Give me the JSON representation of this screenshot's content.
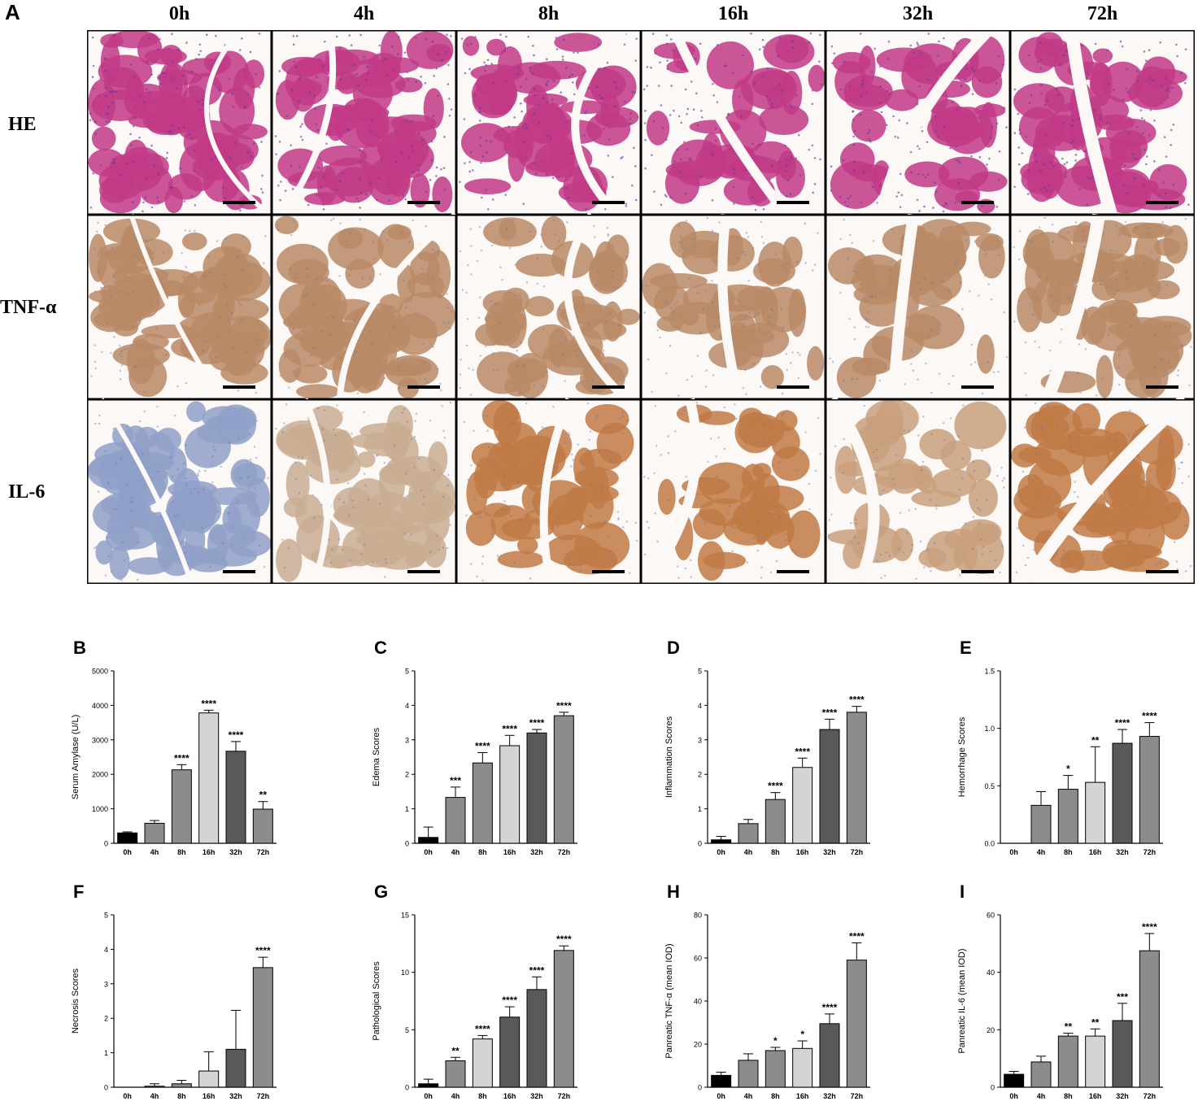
{
  "panel_A": {
    "letter": "A",
    "columns": [
      "0h",
      "4h",
      "8h",
      "16h",
      "32h",
      "72h"
    ],
    "rows": [
      "HE",
      "TNF-α",
      "IL-6"
    ]
  },
  "colors": {
    "he_tissue": "#c23a86",
    "he_nuclei": "#5a3a9e",
    "tnf_tissue": "#b98a66",
    "il6_tissue_0h": "#8fa0c8",
    "il6_tissue_late": "#c07a45",
    "bar_black": "#000000",
    "bar_gray": "#8c8c8c",
    "bar_lightgray": "#d4d4d4",
    "bar_darkgray": "#595959"
  },
  "chart_data": [
    {
      "id": "B",
      "letter": "B",
      "type": "bar",
      "categories": [
        "0h",
        "4h",
        "8h",
        "16h",
        "32h",
        "72h"
      ],
      "values": [
        300,
        580,
        2130,
        3780,
        2670,
        990
      ],
      "errors": [
        30,
        80,
        150,
        80,
        280,
        220
      ],
      "significance": [
        "",
        "",
        "****",
        "****",
        "****",
        "**"
      ],
      "bar_colors": [
        "#000000",
        "#8c8c8c",
        "#8c8c8c",
        "#d4d4d4",
        "#595959",
        "#8c8c8c"
      ],
      "ylabel": "Serum Amylase (U/L)",
      "ylim": [
        0,
        5000
      ],
      "yticks": [
        0,
        1000,
        2000,
        3000,
        4000,
        5000
      ]
    },
    {
      "id": "C",
      "letter": "C",
      "type": "bar",
      "categories": [
        "0h",
        "4h",
        "8h",
        "16h",
        "32h",
        "72h"
      ],
      "values": [
        0.17,
        1.33,
        2.33,
        2.83,
        3.2,
        3.7
      ],
      "errors": [
        0.3,
        0.3,
        0.3,
        0.3,
        0.1,
        0.1
      ],
      "significance": [
        "",
        "***",
        "****",
        "****",
        "****",
        "****"
      ],
      "bar_colors": [
        "#000000",
        "#8c8c8c",
        "#8c8c8c",
        "#d4d4d4",
        "#595959",
        "#8c8c8c"
      ],
      "ylabel": "Edema Scores",
      "ylim": [
        0,
        5
      ],
      "yticks": [
        0,
        1,
        2,
        3,
        4,
        5
      ]
    },
    {
      "id": "D",
      "letter": "D",
      "type": "bar",
      "categories": [
        "0h",
        "4h",
        "8h",
        "16h",
        "32h",
        "72h"
      ],
      "values": [
        0.1,
        0.57,
        1.27,
        2.2,
        3.3,
        3.8
      ],
      "errors": [
        0.1,
        0.12,
        0.2,
        0.27,
        0.3,
        0.17
      ],
      "significance": [
        "",
        "",
        "****",
        "****",
        "****",
        "****"
      ],
      "bar_colors": [
        "#000000",
        "#8c8c8c",
        "#8c8c8c",
        "#d4d4d4",
        "#595959",
        "#8c8c8c"
      ],
      "ylabel": "Inflammation Scores",
      "ylim": [
        0,
        5
      ],
      "yticks": [
        0,
        1,
        2,
        3,
        4,
        5
      ]
    },
    {
      "id": "E",
      "letter": "E",
      "type": "bar",
      "categories": [
        "0h",
        "4h",
        "8h",
        "16h",
        "32h",
        "72h"
      ],
      "values": [
        0,
        0.33,
        0.47,
        0.53,
        0.87,
        0.93
      ],
      "errors": [
        0,
        0.12,
        0.12,
        0.31,
        0.12,
        0.12
      ],
      "significance": [
        "",
        "",
        "*",
        "**",
        "****",
        "****"
      ],
      "bar_colors": [
        "#000000",
        "#8c8c8c",
        "#8c8c8c",
        "#d4d4d4",
        "#595959",
        "#8c8c8c"
      ],
      "ylabel": "Hemorrhage Scores",
      "ylim": [
        0,
        1.5
      ],
      "yticks": [
        0.0,
        0.5,
        1.0,
        1.5
      ],
      "ytick_labels": [
        "0.0",
        "0.5",
        "1.0",
        "1.5"
      ]
    },
    {
      "id": "F",
      "letter": "F",
      "type": "bar",
      "categories": [
        "0h",
        "4h",
        "8h",
        "16h",
        "32h",
        "72h"
      ],
      "values": [
        0,
        0.03,
        0.1,
        0.47,
        1.1,
        3.47
      ],
      "errors": [
        0,
        0.07,
        0.1,
        0.56,
        1.13,
        0.3
      ],
      "significance": [
        "",
        "",
        "",
        "",
        "",
        "****"
      ],
      "bar_colors": [
        "#000000",
        "#8c8c8c",
        "#8c8c8c",
        "#d4d4d4",
        "#595959",
        "#8c8c8c"
      ],
      "ylabel": "Necrosis Scores",
      "ylim": [
        0,
        5
      ],
      "yticks": [
        0,
        1,
        2,
        3,
        4,
        5
      ]
    },
    {
      "id": "G",
      "letter": "G",
      "type": "bar",
      "categories": [
        "0h",
        "4h",
        "8h",
        "16h",
        "32h",
        "72h"
      ],
      "values": [
        0.3,
        2.3,
        4.2,
        6.1,
        8.5,
        11.9
      ],
      "errors": [
        0.4,
        0.3,
        0.3,
        0.9,
        1.1,
        0.4
      ],
      "significance": [
        "",
        "**",
        "****",
        "****",
        "****",
        "****"
      ],
      "bar_colors": [
        "#000000",
        "#8c8c8c",
        "#d4d4d4",
        "#595959",
        "#595959",
        "#8c8c8c"
      ],
      "ylabel": "Pathological Scores",
      "ylim": [
        0,
        15
      ],
      "yticks": [
        0,
        5,
        10,
        15
      ]
    },
    {
      "id": "H",
      "letter": "H",
      "type": "bar",
      "categories": [
        "0h",
        "4h",
        "8h",
        "16h",
        "32h",
        "72h"
      ],
      "values": [
        5.5,
        12.5,
        17,
        18,
        29.5,
        59
      ],
      "errors": [
        1.5,
        3,
        1.5,
        3.5,
        4.5,
        8
      ],
      "significance": [
        "",
        "",
        "*",
        "*",
        "****",
        "****"
      ],
      "bar_colors": [
        "#000000",
        "#8c8c8c",
        "#8c8c8c",
        "#d4d4d4",
        "#595959",
        "#8c8c8c"
      ],
      "ylabel": "Panreatic TNF-α (mean IOD)",
      "ylim": [
        0,
        80
      ],
      "yticks": [
        0,
        20,
        40,
        60,
        80
      ]
    },
    {
      "id": "I",
      "letter": "I",
      "type": "bar",
      "categories": [
        "0h",
        "4h",
        "8h",
        "16h",
        "32h",
        "72h"
      ],
      "values": [
        4.5,
        8.8,
        17.8,
        17.8,
        23.2,
        47.5
      ],
      "errors": [
        1,
        2,
        1,
        2.5,
        6,
        6
      ],
      "significance": [
        "",
        "",
        "**",
        "**",
        "***",
        "****"
      ],
      "bar_colors": [
        "#000000",
        "#8c8c8c",
        "#8c8c8c",
        "#d4d4d4",
        "#595959",
        "#8c8c8c"
      ],
      "ylabel": "Panreatic IL-6 (mean IOD)",
      "ylim": [
        0,
        60
      ],
      "yticks": [
        0,
        20,
        40,
        60
      ]
    }
  ]
}
